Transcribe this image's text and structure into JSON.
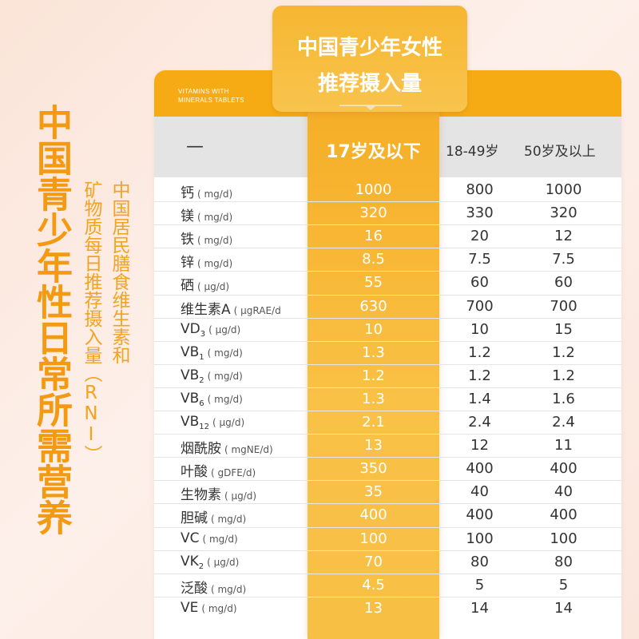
{
  "side_title": "中国青少年性日常所需营养",
  "side_subtitle_1": "中国居民膳食维生素和",
  "side_subtitle_2": "矿物质每日推荐摄入量（RNI）",
  "card": {
    "brand_line1": "VITAMINS WITH",
    "brand_line2": "MINERALS TABLETS",
    "tab_line1": "中国青少年女性",
    "tab_line2": "推荐摄入量",
    "header_dash": "—",
    "col1_header": "17岁及以下",
    "col2_header": "18-49岁",
    "col3_header": "50岁及以上"
  },
  "rows": [
    {
      "name": "钙",
      "sub": "",
      "unit": "( mg/d)",
      "v1": "1000",
      "v2": "800",
      "v3": "1000"
    },
    {
      "name": "镁",
      "sub": "",
      "unit": "( mg/d)",
      "v1": "320",
      "v2": "330",
      "v3": "320"
    },
    {
      "name": "铁",
      "sub": "",
      "unit": "( mg/d)",
      "v1": "16",
      "v2": "20",
      "v3": "12"
    },
    {
      "name": "锌",
      "sub": "",
      "unit": "( mg/d)",
      "v1": "8.5",
      "v2": "7.5",
      "v3": "7.5"
    },
    {
      "name": "硒",
      "sub": "",
      "unit": "( μg/d)",
      "v1": "55",
      "v2": "60",
      "v3": "60"
    },
    {
      "name": "维生素A",
      "sub": "",
      "unit": "( μgRAE/d",
      "v1": "630",
      "v2": "700",
      "v3": "700"
    },
    {
      "name": "VD",
      "sub": "3",
      "unit": "( μg/d)",
      "v1": "10",
      "v2": "10",
      "v3": "15"
    },
    {
      "name": "VB",
      "sub": "1",
      "unit": "( mg/d)",
      "v1": "1.3",
      "v2": "1.2",
      "v3": "1.2"
    },
    {
      "name": "VB",
      "sub": "2",
      "unit": "( mg/d)",
      "v1": "1.2",
      "v2": "1.2",
      "v3": "1.2"
    },
    {
      "name": "VB",
      "sub": "6",
      "unit": "( mg/d)",
      "v1": "1.3",
      "v2": "1.4",
      "v3": "1.6"
    },
    {
      "name": "VB",
      "sub": "12",
      "unit": "( μg/d)",
      "v1": "2.1",
      "v2": "2.4",
      "v3": "2.4"
    },
    {
      "name": "烟酰胺",
      "sub": "",
      "unit": "( mgNE/d)",
      "v1": "13",
      "v2": "12",
      "v3": "11"
    },
    {
      "name": "叶酸",
      "sub": "",
      "unit": "( gDFE/d)",
      "v1": "350",
      "v2": "400",
      "v3": "400"
    },
    {
      "name": "生物素",
      "sub": "",
      "unit": "( μg/d)",
      "v1": "35",
      "v2": "40",
      "v3": "40"
    },
    {
      "name": "胆碱",
      "sub": "",
      "unit": "( mg/d)",
      "v1": "400",
      "v2": "400",
      "v3": "400"
    },
    {
      "name": "VC",
      "sub": "",
      "unit": "( mg/d)",
      "v1": "100",
      "v2": "100",
      "v3": "100"
    },
    {
      "name": "VK",
      "sub": "2",
      "unit": "( μg/d)",
      "v1": "70",
      "v2": "80",
      "v3": "80"
    },
    {
      "name": "泛酸",
      "sub": "",
      "unit": "( mg/d)",
      "v1": "4.5",
      "v2": "5",
      "v3": "5"
    },
    {
      "name": "VE",
      "sub": "",
      "unit": "( mg/d)",
      "v1": "13",
      "v2": "14",
      "v3": "14"
    }
  ]
}
